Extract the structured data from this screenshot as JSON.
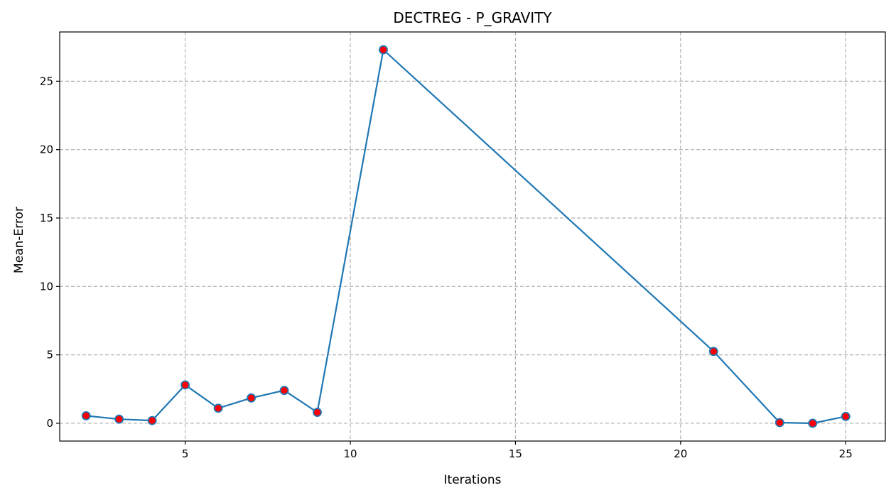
{
  "chart_data": {
    "type": "line",
    "title": "DECTREG - P_GRAVITY",
    "xlabel": "Iterations",
    "ylabel": "Mean-Error",
    "xlim": [
      1.2,
      26.2
    ],
    "ylim": [
      -1.3,
      28.6
    ],
    "xticks": [
      5,
      10,
      15,
      20,
      25
    ],
    "yticks": [
      0,
      5,
      10,
      15,
      20,
      25
    ],
    "grid": true,
    "series": [
      {
        "line_color": "#1f77b4",
        "marker_fill": "#ff0000",
        "marker_edge": "#1f77b4",
        "x": [
          2,
          3,
          4,
          5,
          6,
          7,
          8,
          9,
          11,
          21,
          23,
          24,
          25
        ],
        "y": [
          0.55,
          0.3,
          0.2,
          2.8,
          1.1,
          1.85,
          2.4,
          0.8,
          27.3,
          5.25,
          0.05,
          0.0,
          0.5
        ]
      }
    ]
  }
}
